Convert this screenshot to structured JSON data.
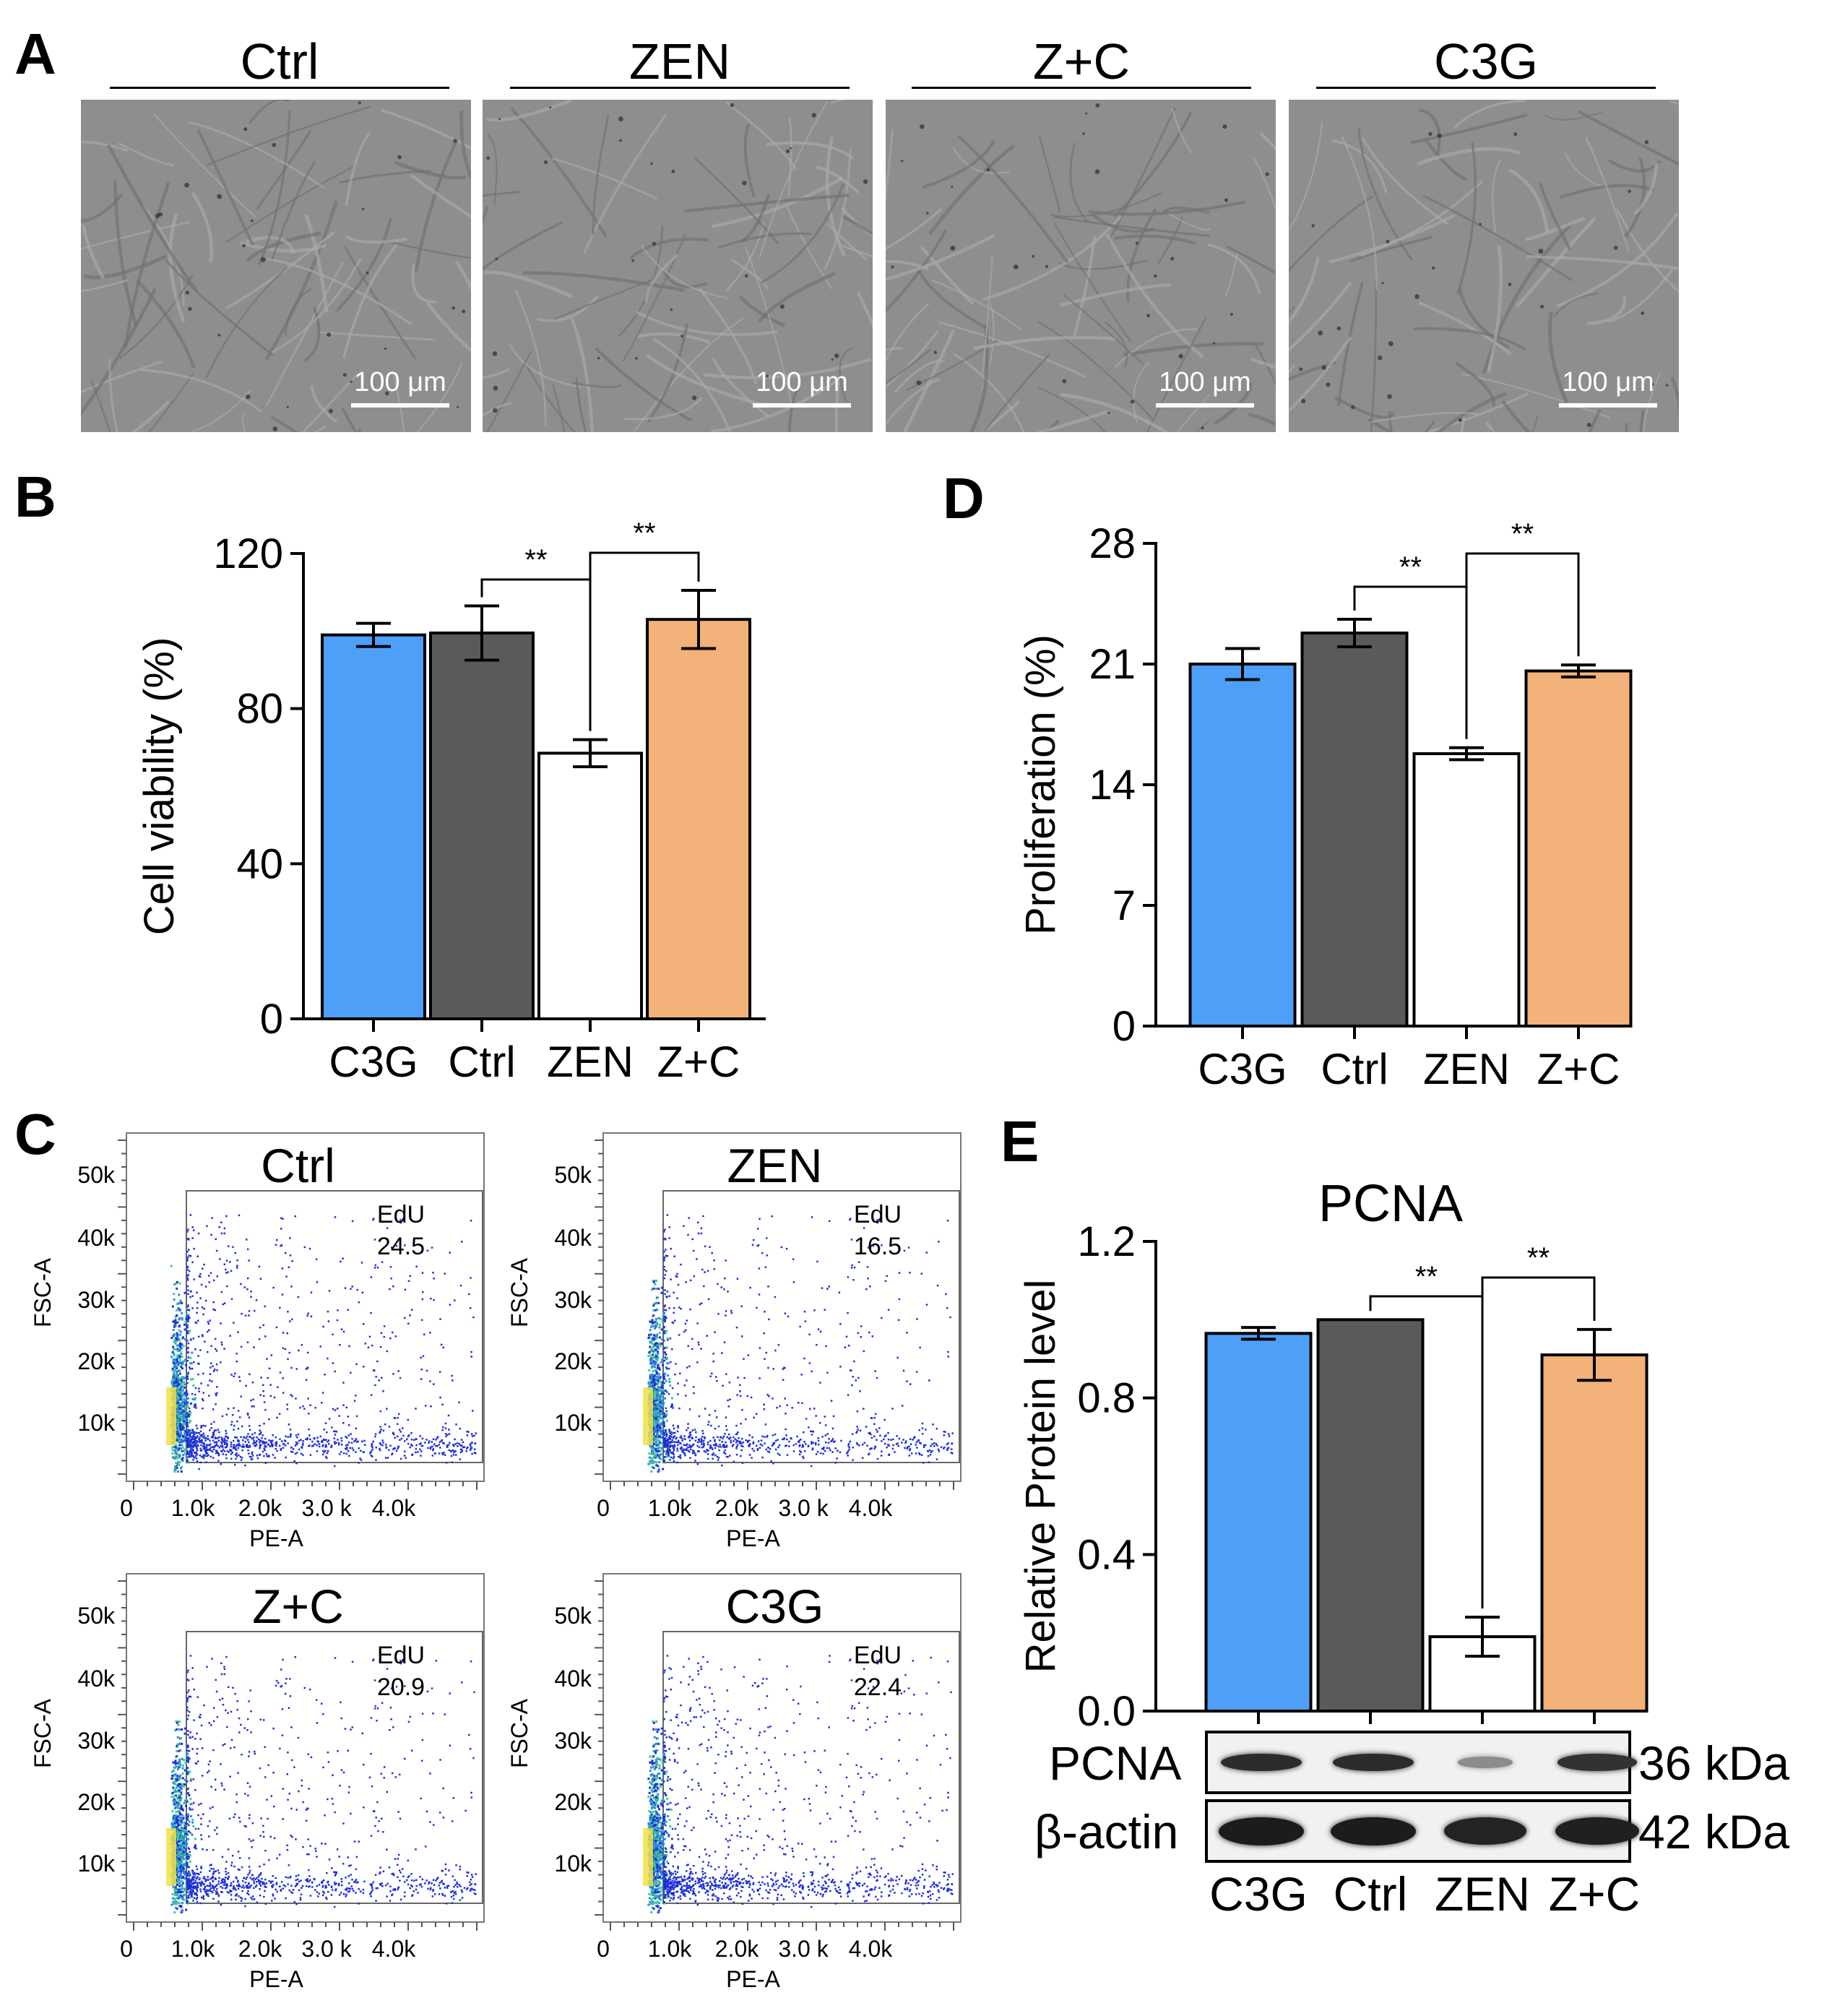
{
  "panels": {
    "a": {
      "label": "A",
      "groups": [
        "Ctrl",
        "ZEN",
        "Z+C",
        "C3G"
      ],
      "scale_bar": "100 μm"
    },
    "b": {
      "label": "B"
    },
    "c": {
      "label": "C",
      "x_axis_label": "PE-A",
      "y_axis_label": "FSC-A",
      "x_ticks": [
        "0",
        "1.0k",
        "2.0k",
        "3.0 k",
        "4.0k"
      ],
      "y_ticks": [
        "50k",
        "40k",
        "30k",
        "20k",
        "10k"
      ],
      "gate_label": "EdU",
      "plots": [
        {
          "title": "Ctrl",
          "edu": "24.5"
        },
        {
          "title": "ZEN",
          "edu": "16.5"
        },
        {
          "title": "Z+C",
          "edu": "20.9"
        },
        {
          "title": "C3G",
          "edu": "22.4"
        }
      ]
    },
    "d": {
      "label": "D"
    },
    "e": {
      "label": "E",
      "blot": {
        "rows": [
          {
            "protein": "PCNA",
            "size": "36 kDa",
            "intensity": [
              0.85,
              0.85,
              0.2,
              0.8
            ]
          },
          {
            "protein": "β-actin",
            "size": "42 kDa",
            "intensity": [
              0.95,
              0.95,
              0.9,
              0.92
            ]
          }
        ],
        "lanes": [
          "C3G",
          "Ctrl",
          "ZEN",
          "Z+C"
        ]
      }
    }
  },
  "colors": {
    "c3g": "#4d9ff7",
    "ctrl": "#5a5a5a",
    "zen": "#ffffff",
    "zc": "#f2b27a",
    "dots": "#1f2fd8"
  },
  "chart_data": [
    {
      "id": "b",
      "type": "bar",
      "title": "",
      "xlabel": "",
      "ylabel": "Cell viability (%)",
      "categories": [
        "C3G",
        "Ctrl",
        "ZEN",
        "Z+C"
      ],
      "values": [
        99,
        99.5,
        68.5,
        103
      ],
      "errors": [
        3,
        7,
        3.5,
        7.5
      ],
      "ylim": [
        0,
        120
      ],
      "yticks": [
        0,
        40,
        80,
        120
      ],
      "significance": [
        {
          "from": 1,
          "to": 2,
          "label": "**"
        },
        {
          "from": 2,
          "to": 3,
          "label": "**"
        }
      ]
    },
    {
      "id": "d",
      "type": "bar",
      "title": "",
      "xlabel": "",
      "ylabel": "Proliferation (%)",
      "categories": [
        "C3G",
        "Ctrl",
        "ZEN",
        "Z+C"
      ],
      "values": [
        21,
        22.8,
        15.8,
        20.6
      ],
      "errors": [
        0.9,
        0.8,
        0.35,
        0.35
      ],
      "ylim": [
        0,
        28
      ],
      "yticks": [
        0,
        7,
        14,
        21,
        28
      ],
      "significance": [
        {
          "from": 1,
          "to": 2,
          "label": "**"
        },
        {
          "from": 2,
          "to": 3,
          "label": "**"
        }
      ]
    },
    {
      "id": "e",
      "type": "bar",
      "title": "PCNA",
      "xlabel": "",
      "ylabel": "Relative Protein level",
      "categories": [
        "C3G",
        "Ctrl",
        "ZEN",
        "Z+C"
      ],
      "values": [
        0.965,
        1.0,
        0.19,
        0.91
      ],
      "errors": [
        0.015,
        0.0,
        0.05,
        0.065
      ],
      "ylim": [
        0,
        1.2
      ],
      "yticks": [
        0.0,
        0.4,
        0.8,
        1.2
      ],
      "significance": [
        {
          "from": 1,
          "to": 2,
          "label": "**"
        },
        {
          "from": 2,
          "to": 3,
          "label": "**"
        }
      ]
    }
  ]
}
